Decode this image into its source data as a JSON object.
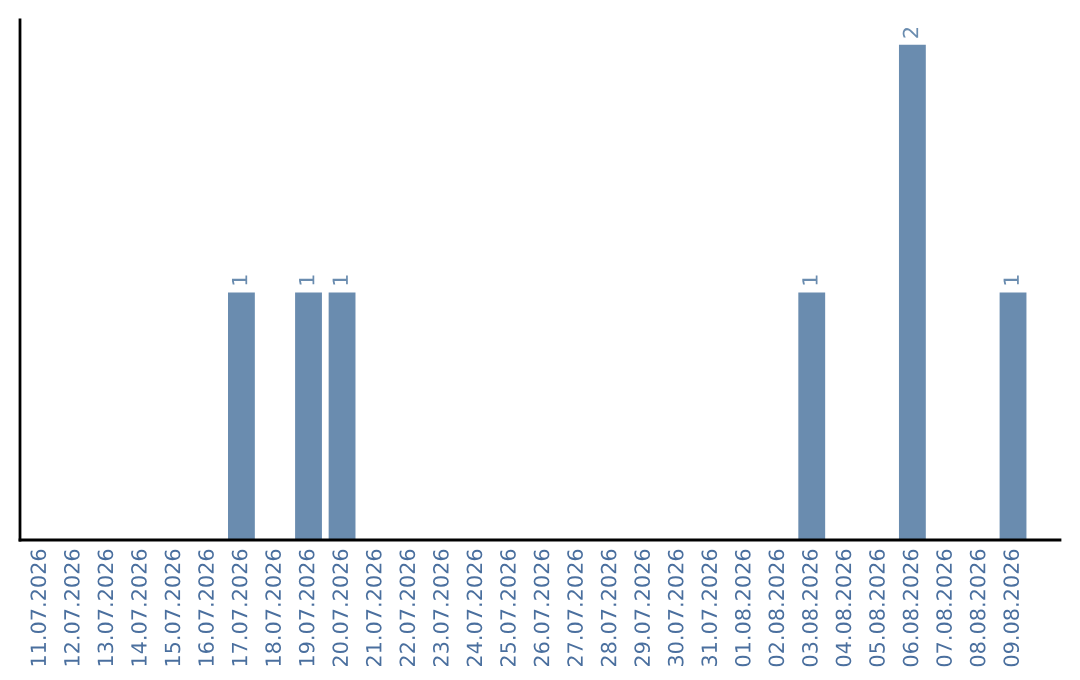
{
  "chart_data": {
    "type": "bar",
    "categories": [
      "11.07.2026",
      "12.07.2026",
      "13.07.2026",
      "14.07.2026",
      "15.07.2026",
      "16.07.2026",
      "17.07.2026",
      "18.07.2026",
      "19.07.2026",
      "20.07.2026",
      "21.07.2026",
      "22.07.2026",
      "23.07.2026",
      "24.07.2026",
      "25.07.2026",
      "26.07.2026",
      "27.07.2026",
      "28.07.2026",
      "29.07.2026",
      "30.07.2026",
      "31.07.2026",
      "01.08.2026",
      "02.08.2026",
      "03.08.2026",
      "04.08.2026",
      "05.08.2026",
      "06.08.2026",
      "07.08.2026",
      "08.08.2026",
      "09.08.2026"
    ],
    "values": [
      0,
      0,
      0,
      0,
      0,
      0,
      1,
      0,
      1,
      1,
      0,
      0,
      0,
      0,
      0,
      0,
      0,
      0,
      0,
      0,
      0,
      0,
      0,
      1,
      0,
      0,
      2,
      0,
      0,
      1
    ],
    "value_labels": [
      null,
      null,
      null,
      null,
      null,
      null,
      "1",
      null,
      "1",
      "1",
      null,
      null,
      null,
      null,
      null,
      null,
      null,
      null,
      null,
      null,
      null,
      null,
      null,
      "1",
      null,
      null,
      "2",
      null,
      null,
      "1"
    ],
    "color": "#6a8caf",
    "grid": false,
    "legend": false
  }
}
